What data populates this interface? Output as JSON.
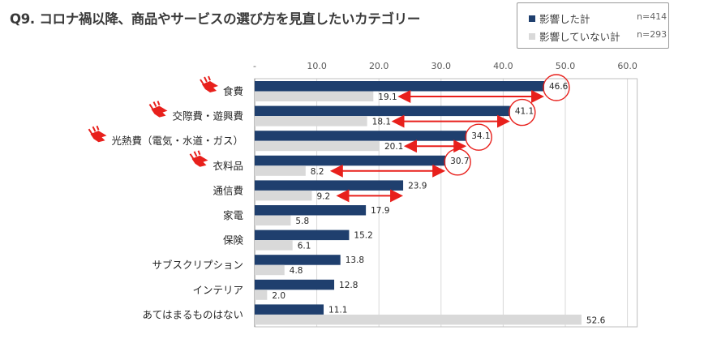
{
  "title": "Q9. コロナ禍以降、商品やサービスの選び方を見直したいカテゴリー",
  "legend": [
    {
      "label": "影響した計",
      "n": "n=414",
      "color": "#1f3f6e"
    },
    {
      "label": "影響していない計",
      "n": "n=293",
      "color": "#d9d9d9"
    }
  ],
  "chart_data": {
    "type": "bar",
    "orientation": "horizontal",
    "title": "Q9. コロナ禍以降、商品やサービスの選び方を見直したいカテゴリー",
    "categories": [
      "食費",
      "交際費・遊興費",
      "光熱費（電気・水道・ガス）",
      "衣料品",
      "通信費",
      "家電",
      "保険",
      "サブスクリプション",
      "インテリア",
      "あてはまるものはない"
    ],
    "series": [
      {
        "name": "影響した計",
        "values": [
          46.6,
          41.1,
          34.1,
          30.7,
          23.9,
          17.9,
          15.2,
          13.8,
          12.8,
          11.1
        ]
      },
      {
        "name": "影響していない計",
        "values": [
          19.1,
          18.1,
          20.1,
          8.2,
          9.2,
          5.8,
          6.1,
          4.8,
          2.0,
          52.6
        ]
      }
    ],
    "xlim": [
      0,
      60
    ],
    "x_ticks": [
      "-",
      "10.0",
      "20.0",
      "30.0",
      "40.0",
      "50.0",
      "60.0"
    ],
    "grid": true,
    "legend_position": "top-right",
    "highlighted_categories": [
      0,
      1,
      2,
      3
    ],
    "circled_values": [
      0,
      1,
      2,
      3
    ],
    "gap_arrows": [
      0,
      1,
      2,
      3,
      4
    ]
  }
}
